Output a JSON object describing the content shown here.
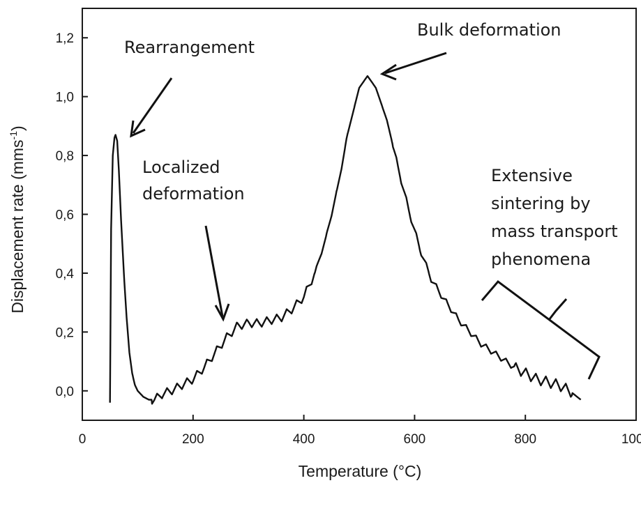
{
  "chart_data": {
    "type": "line",
    "title": "",
    "xlabel": "Temperature (°C)",
    "ylabel_main": "Displacement rate (mms",
    "ylabel_sup": "-1",
    "ylabel_close": ")",
    "xlim": [
      0,
      1000
    ],
    "ylim": [
      -0.1,
      1.3
    ],
    "x_ticks": [
      0,
      200,
      400,
      600,
      800,
      1000
    ],
    "x_tick_labels": [
      "0",
      "200",
      "400",
      "600",
      "800",
      "1000"
    ],
    "y_ticks": [
      0.0,
      0.2,
      0.4,
      0.6,
      0.8,
      1.0,
      1.2
    ],
    "y_tick_labels": [
      "0,0",
      "0,2",
      "0,4",
      "0,6",
      "0,8",
      "1,0",
      "1,2"
    ],
    "grid": false,
    "series": [
      {
        "name": "Displacement rate",
        "x": [
          50,
          52,
          55,
          58,
          60,
          63,
          66,
          70,
          75,
          80,
          85,
          90,
          95,
          100,
          110,
          120,
          130,
          145,
          160,
          180,
          200,
          220,
          240,
          260,
          280,
          300,
          320,
          340,
          360,
          380,
          400,
          420,
          440,
          460,
          480,
          500,
          515,
          530,
          550,
          570,
          590,
          610,
          630,
          650,
          680,
          700,
          720,
          750,
          780,
          800,
          820,
          840,
          860,
          880,
          900
        ],
        "y": [
          -0.04,
          0.55,
          0.8,
          0.86,
          0.87,
          0.85,
          0.75,
          0.58,
          0.4,
          0.25,
          0.13,
          0.06,
          0.02,
          0.0,
          -0.02,
          -0.03,
          -0.03,
          -0.01,
          0.0,
          0.02,
          0.04,
          0.08,
          0.13,
          0.18,
          0.22,
          0.23,
          0.23,
          0.24,
          0.25,
          0.28,
          0.32,
          0.4,
          0.52,
          0.68,
          0.88,
          1.03,
          1.07,
          1.03,
          0.92,
          0.76,
          0.61,
          0.48,
          0.38,
          0.32,
          0.24,
          0.2,
          0.16,
          0.12,
          0.08,
          0.06,
          0.04,
          0.03,
          0.02,
          0.0,
          -0.03
        ]
      }
    ],
    "annotations": [
      {
        "id": "rearrangement",
        "text": "Rearrangement",
        "points_to": [
          68,
          0.87
        ]
      },
      {
        "id": "localized",
        "lines": [
          "Localized",
          "deformation"
        ],
        "points_to": [
          262,
          0.23
        ]
      },
      {
        "id": "bulk",
        "text": "Bulk deformation",
        "points_to": [
          515,
          1.07
        ]
      },
      {
        "id": "extensive",
        "lines": [
          "Extensive",
          "sintering by",
          "mass transport",
          "phenomena"
        ],
        "points_to": [
          780,
          0.12
        ]
      }
    ]
  },
  "colors": {
    "line": "#111111",
    "axis": "#1a1a1a",
    "background": "#ffffff"
  }
}
